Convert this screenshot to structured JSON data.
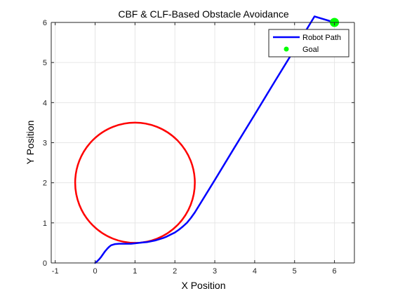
{
  "chart_data": {
    "type": "line",
    "title": "CBF & CLF-Based Obstacle Avoidance",
    "xlabel": "X Position",
    "ylabel": "Y Position",
    "xlim": [
      -1.1,
      6.5
    ],
    "ylim": [
      0,
      6
    ],
    "xticks": [
      -1,
      0,
      1,
      2,
      3,
      4,
      5,
      6
    ],
    "yticks": [
      0,
      1,
      2,
      3,
      4,
      5,
      6
    ],
    "grid": true,
    "legend_position": "top-right",
    "series": [
      {
        "name": "Robot Path",
        "kind": "line",
        "color": "#0000ff",
        "x": [
          0.0,
          0.05,
          0.1,
          0.15,
          0.2,
          0.25,
          0.3,
          0.35,
          0.4,
          0.5,
          0.6,
          0.7,
          0.8,
          0.9,
          1.0,
          1.1,
          1.2,
          1.3,
          1.4,
          1.5,
          1.6,
          1.7,
          1.8,
          1.9,
          2.0,
          2.1,
          2.2,
          2.3,
          2.4,
          2.5,
          3.0,
          3.5,
          4.0,
          4.5,
          5.0,
          5.5,
          6.0
        ],
        "y": [
          0.0,
          0.04,
          0.09,
          0.15,
          0.22,
          0.29,
          0.35,
          0.4,
          0.44,
          0.47,
          0.48,
          0.48,
          0.48,
          0.48,
          0.49,
          0.5,
          0.51,
          0.52,
          0.54,
          0.56,
          0.59,
          0.62,
          0.66,
          0.71,
          0.76,
          0.83,
          0.91,
          1.0,
          1.12,
          1.26,
          2.07,
          2.89,
          3.7,
          4.52,
          5.33,
          6.15,
          6.0
        ]
      },
      {
        "name": "Goal",
        "kind": "point",
        "color": "#00ff00",
        "x": [
          6.0
        ],
        "y": [
          6.0
        ]
      },
      {
        "kind": "circle",
        "color": "#ff0000",
        "cx": 1.0,
        "cy": 2.0,
        "r": 1.5
      }
    ]
  }
}
